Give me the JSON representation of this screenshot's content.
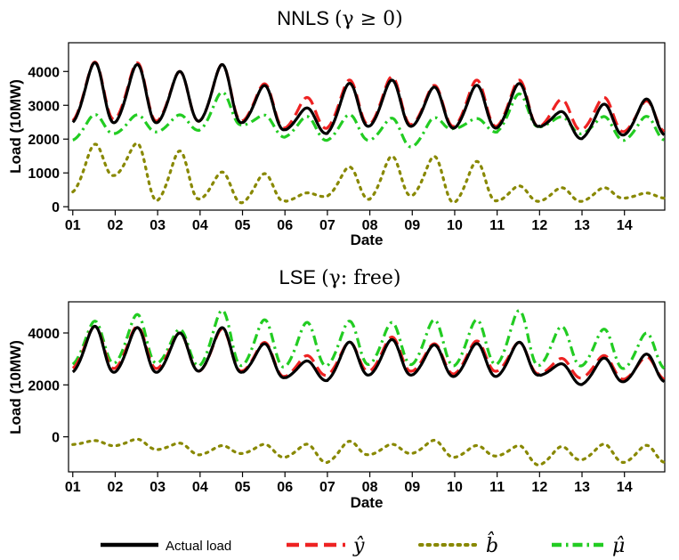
{
  "chart_data": [
    {
      "type": "line",
      "title": "NNLS",
      "title_math": "(γ ≥ 0)",
      "xlabel": "Date",
      "ylabel": "Load (10MW)",
      "x_tick_labels": [
        "01",
        "02",
        "03",
        "04",
        "05",
        "06",
        "07",
        "08",
        "09",
        "10",
        "11",
        "12",
        "13",
        "14"
      ],
      "x_range": [
        0.9,
        14.95
      ],
      "ylim": [
        -100,
        4850
      ],
      "y_ticks": [
        0,
        1000,
        2000,
        3000,
        4000
      ],
      "daily_peaks": {
        "actual_load": [
          4200,
          4150,
          3950,
          4150,
          3550,
          2900,
          3600,
          3700,
          3500,
          3550,
          3600,
          2800,
          3000,
          3150
        ],
        "y_hat": [
          4220,
          4200,
          3950,
          4150,
          3600,
          3200,
          3700,
          3800,
          3550,
          3700,
          3700,
          3150,
          3200,
          3100
        ],
        "b_hat": [
          1800,
          1850,
          1600,
          1000,
          950,
          400,
          1150,
          1450,
          1450,
          1300,
          600,
          550,
          550,
          400
        ],
        "mu_hat": [
          2700,
          2700,
          2700,
          3350,
          2700,
          2650,
          2700,
          2600,
          2600,
          2600,
          3300,
          2650,
          2650,
          2650
        ]
      },
      "daily_troughs": {
        "actual_load": [
          2450,
          2450,
          2450,
          2500,
          2450,
          2250,
          2150,
          2350,
          2350,
          2300,
          2300,
          2350,
          2000,
          2100
        ],
        "y_hat": [
          2500,
          2550,
          2500,
          2500,
          2500,
          2300,
          2300,
          2400,
          2400,
          2350,
          2350,
          2350,
          2250,
          2200
        ],
        "b_hat": [
          400,
          900,
          150,
          200,
          100,
          150,
          300,
          200,
          300,
          100,
          150,
          150,
          150,
          250
        ],
        "mu_hat": [
          1950,
          2150,
          2200,
          2250,
          2400,
          2050,
          1950,
          1950,
          1750,
          2300,
          2200,
          2350,
          2150,
          1950
        ]
      },
      "series": [
        {
          "name": "Actual load",
          "color": "#000000",
          "style": "solid"
        },
        {
          "name": "ŷ",
          "color": "#ee2222",
          "style": "dashed"
        },
        {
          "name": "b̂",
          "color": "#888800",
          "style": "dotted"
        },
        {
          "name": "μ̂",
          "color": "#22cc22",
          "style": "dashdot"
        }
      ]
    },
    {
      "type": "line",
      "title": "LSE",
      "title_math": "(γ: free)",
      "xlabel": "Date",
      "ylabel": "Load (10MW)",
      "x_tick_labels": [
        "01",
        "02",
        "03",
        "04",
        "05",
        "06",
        "07",
        "08",
        "09",
        "10",
        "11",
        "12",
        "13",
        "14"
      ],
      "x_range": [
        0.9,
        14.95
      ],
      "ylim": [
        -1350,
        5200
      ],
      "y_ticks": [
        0,
        2000,
        4000
      ],
      "daily_peaks": {
        "actual_load": [
          4200,
          4150,
          3950,
          4150,
          3550,
          2900,
          3600,
          3700,
          3500,
          3550,
          3600,
          2800,
          3000,
          3150
        ],
        "y_hat": [
          4200,
          4200,
          3950,
          4100,
          3600,
          3100,
          3600,
          3800,
          3550,
          3650,
          3600,
          3000,
          3100,
          3050
        ],
        "b_hat": [
          -150,
          -100,
          -250,
          -350,
          -300,
          -300,
          -200,
          -300,
          -150,
          -350,
          -350,
          -400,
          -300,
          -350
        ],
        "mu_hat": [
          4400,
          4650,
          4100,
          4800,
          4450,
          4350,
          4400,
          4350,
          4450,
          4450,
          4800,
          4200,
          4100,
          3950
        ]
      },
      "daily_troughs": {
        "actual_load": [
          2450,
          2450,
          2450,
          2500,
          2450,
          2250,
          2150,
          2350,
          2350,
          2300,
          2300,
          2350,
          2000,
          2100
        ],
        "y_hat": [
          2600,
          2600,
          2600,
          2500,
          2500,
          2300,
          2350,
          2500,
          2500,
          2400,
          2500,
          2400,
          2250,
          2200
        ],
        "b_hat": [
          -300,
          -350,
          -500,
          -700,
          -650,
          -800,
          -1000,
          -700,
          -650,
          -800,
          -750,
          -1100,
          -900,
          -1000
        ],
        "mu_hat": [
          2750,
          2800,
          2800,
          2700,
          2700,
          2650,
          2700,
          2750,
          2750,
          2700,
          2750,
          2700,
          2700,
          2600
        ]
      },
      "series": [
        {
          "name": "Actual load",
          "color": "#000000",
          "style": "solid"
        },
        {
          "name": "ŷ",
          "color": "#ee2222",
          "style": "dashed"
        },
        {
          "name": "b̂",
          "color": "#888800",
          "style": "dotted"
        },
        {
          "name": "μ̂",
          "color": "#22cc22",
          "style": "dashdot"
        }
      ]
    }
  ],
  "legend": {
    "position": "bottom",
    "items": [
      {
        "label": "Actual load",
        "math": false,
        "color": "#000000",
        "style": "solid"
      },
      {
        "label": "ŷ",
        "math": true,
        "color": "#ee2222",
        "style": "dashed"
      },
      {
        "label": "b̂",
        "math": true,
        "color": "#888800",
        "style": "dotted"
      },
      {
        "label": "μ̂",
        "math": true,
        "color": "#22cc22",
        "style": "dashdot"
      }
    ]
  }
}
